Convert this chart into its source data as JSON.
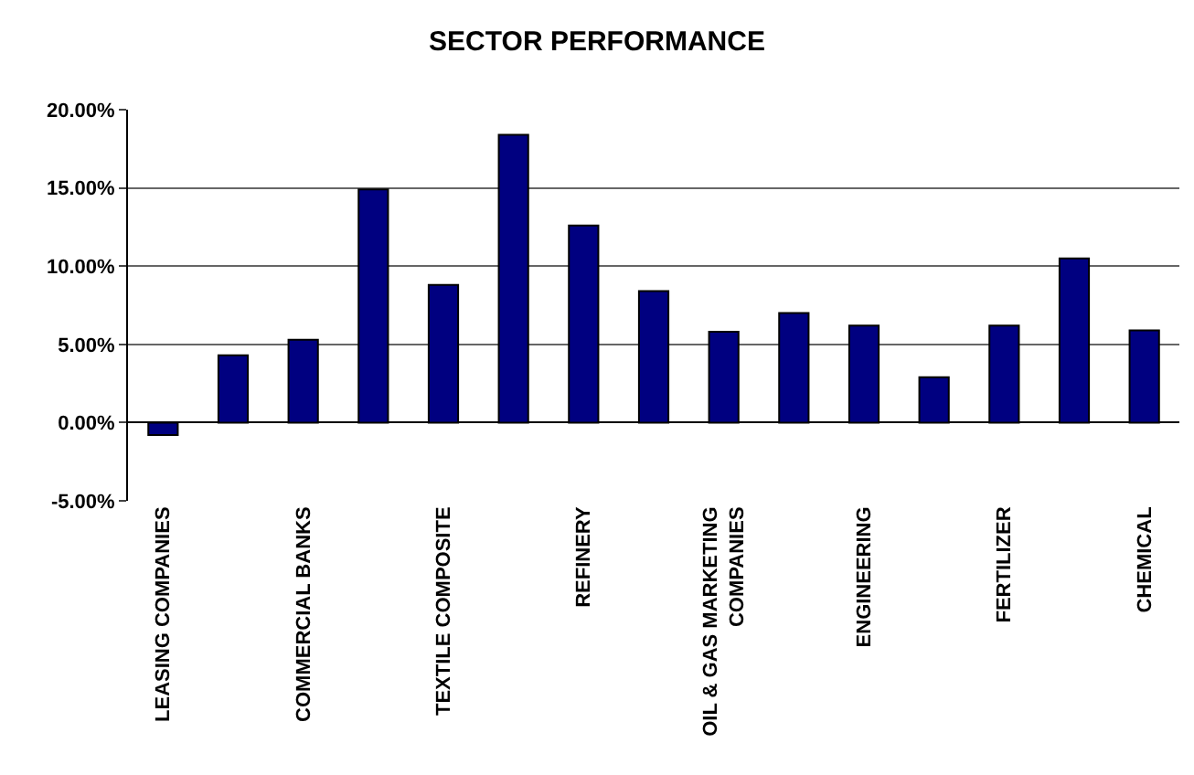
{
  "chart_data": {
    "type": "bar",
    "title": "SECTOR PERFORMANCE",
    "categories": [
      "LEASING COMPANIES",
      null,
      "COMMERCIAL BANKS",
      null,
      "TEXTILE COMPOSITE",
      null,
      "REFINERY",
      null,
      "OIL & GAS MARKETING COMPANIES",
      null,
      "ENGINEERING",
      null,
      "FERTILIZER",
      null,
      "CHEMICAL"
    ],
    "values": [
      -0.8,
      4.3,
      5.3,
      14.9,
      8.8,
      18.4,
      12.6,
      8.4,
      5.8,
      7.0,
      6.2,
      2.9,
      6.2,
      10.5,
      5.9
    ],
    "color": "#000080",
    "ylim": [
      -5,
      20
    ],
    "yticks": [
      {
        "value": -5,
        "label": "-5.00%"
      },
      {
        "value": 0,
        "label": "0.00%"
      },
      {
        "value": 5,
        "label": "5.00%"
      },
      {
        "value": 10,
        "label": "10.00%"
      },
      {
        "value": 15,
        "label": "15.00%"
      },
      {
        "value": 20,
        "label": "20.00%"
      }
    ],
    "grid": "y"
  }
}
